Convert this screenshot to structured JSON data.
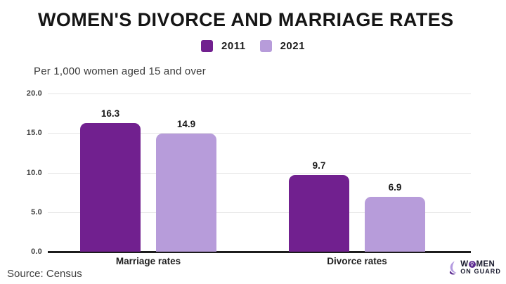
{
  "title": "WOMEN'S DIVORCE AND MARRIAGE RATES",
  "subtitle": "Per 1,000 women aged 15 and over",
  "legend": {
    "items": [
      {
        "label": "2011",
        "color": "#71208f"
      },
      {
        "label": "2021",
        "color": "#b79cda"
      }
    ]
  },
  "footer": {
    "source": "Source: Census",
    "logo_line1": "WOMEN",
    "logo_line2": "ON GUARD",
    "logo_o_symbol": "♀"
  },
  "colors": {
    "bar_2011": "#71208f",
    "bar_2021": "#b79cda",
    "gridline": "#e6e6e6",
    "axis": "#1c1c1c",
    "title_text": "#151515",
    "logo_purple_dark": "#5c2b90",
    "logo_purple_light": "#b49be0"
  },
  "chart_data": {
    "type": "bar",
    "categories": [
      "Marriage rates",
      "Divorce rates"
    ],
    "series": [
      {
        "name": "2011",
        "color": "#71208f",
        "values": [
          16.3,
          9.7
        ],
        "labels": [
          "16.3",
          "9.7"
        ]
      },
      {
        "name": "2021",
        "color": "#b79cda",
        "values": [
          14.9,
          6.9
        ],
        "labels": [
          "14.9",
          "6.9"
        ]
      }
    ],
    "title": "WOMEN'S DIVORCE AND MARRIAGE RATES",
    "ylabel": "Per 1,000 women aged 15 and over",
    "xlabel": "",
    "ylim": [
      0,
      20
    ],
    "yticks": [
      "0.0",
      "5.0",
      "10.0",
      "15.0",
      "20.0"
    ],
    "grid": true,
    "legend_position": "top-center"
  }
}
